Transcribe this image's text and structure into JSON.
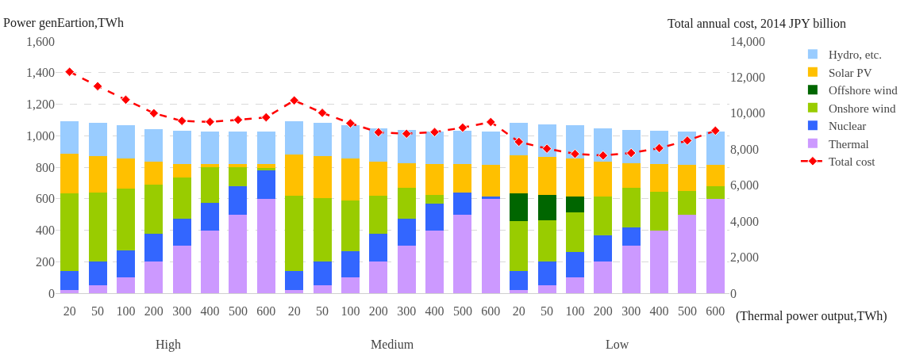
{
  "chart_data": {
    "type": "bar",
    "stacked": true,
    "ylabel": "Power genEartion,TWh",
    "y2label": "Total annual cost, 2014 JPY billion",
    "xlabel": "(Thermal power output,TWh)",
    "categories": [
      "20",
      "50",
      "100",
      "200",
      "300",
      "400",
      "500",
      "600",
      "20",
      "50",
      "100",
      "200",
      "300",
      "400",
      "500",
      "600",
      "20",
      "50",
      "100",
      "200",
      "300",
      "400",
      "500",
      "600"
    ],
    "annotations": [
      "High",
      "Medium",
      "Low"
    ],
    "series": [
      {
        "name": "Thermal",
        "color": "#cc99ff",
        "values": [
          20,
          50,
          100,
          200,
          300,
          400,
          500,
          600,
          20,
          50,
          100,
          200,
          300,
          400,
          500,
          600,
          20,
          50,
          100,
          200,
          300,
          400,
          500,
          600
        ]
      },
      {
        "name": "Nuclear",
        "color": "#3366ff",
        "values": [
          120,
          150,
          170,
          175,
          175,
          175,
          180,
          178,
          120,
          150,
          165,
          175,
          175,
          170,
          140,
          15,
          120,
          150,
          160,
          165,
          120,
          0,
          0,
          0
        ]
      },
      {
        "name": "Onshore wind",
        "color": "#99cc00",
        "values": [
          495,
          440,
          395,
          315,
          260,
          225,
          120,
          17,
          480,
          405,
          325,
          245,
          195,
          55,
          0,
          0,
          320,
          265,
          255,
          250,
          250,
          245,
          150,
          80
        ]
      },
      {
        "name": "Offshore wind",
        "color": "#006600",
        "values": [
          0,
          0,
          0,
          0,
          0,
          0,
          0,
          0,
          0,
          0,
          0,
          0,
          0,
          0,
          0,
          0,
          175,
          160,
          100,
          0,
          0,
          0,
          0,
          0
        ]
      },
      {
        "name": "Solar PV",
        "color": "#ffc000",
        "values": [
          250,
          230,
          190,
          145,
          85,
          20,
          18,
          23,
          260,
          265,
          265,
          215,
          155,
          195,
          180,
          200,
          240,
          240,
          240,
          220,
          155,
          175,
          165,
          135
        ]
      },
      {
        "name": "Hydro, etc.",
        "color": "#99ccff",
        "values": [
          205,
          210,
          210,
          205,
          210,
          205,
          207,
          207,
          210,
          210,
          210,
          210,
          210,
          205,
          210,
          210,
          205,
          205,
          210,
          210,
          210,
          210,
          210,
          210
        ]
      },
      {
        "name": "Total cost",
        "type": "line",
        "axis": "y2",
        "color": "#ff0000",
        "marker": "diamond",
        "line_style": "dashed",
        "values": [
          12300,
          11500,
          10750,
          10000,
          9570,
          9520,
          9630,
          9770,
          10710,
          10020,
          9440,
          8940,
          8860,
          8950,
          9200,
          9510,
          8410,
          8030,
          7740,
          7650,
          7790,
          8060,
          8480,
          9030
        ]
      }
    ],
    "ylim": [
      0,
      1600
    ],
    "yticks": [
      0,
      200,
      400,
      600,
      800,
      {
        "value": 1000,
        "label": "1,000"
      },
      {
        "value": 1200,
        "label": "1,200"
      },
      {
        "value": 1400,
        "label": "1,400"
      },
      {
        "value": 1600,
        "label": "1,600"
      }
    ],
    "y2lim": [
      0,
      14000
    ],
    "y2ticks": [
      0,
      {
        "value": 2000,
        "label": "2,000"
      },
      {
        "value": 4000,
        "label": "4,000"
      },
      {
        "value": 6000,
        "label": "6,000"
      },
      {
        "value": 8000,
        "label": "8,000"
      },
      {
        "value": 10000,
        "label": "10,000"
      },
      {
        "value": 12000,
        "label": "12,000"
      },
      {
        "value": 14000,
        "label": "14,000"
      }
    ],
    "grid": "y",
    "legend": "right"
  }
}
